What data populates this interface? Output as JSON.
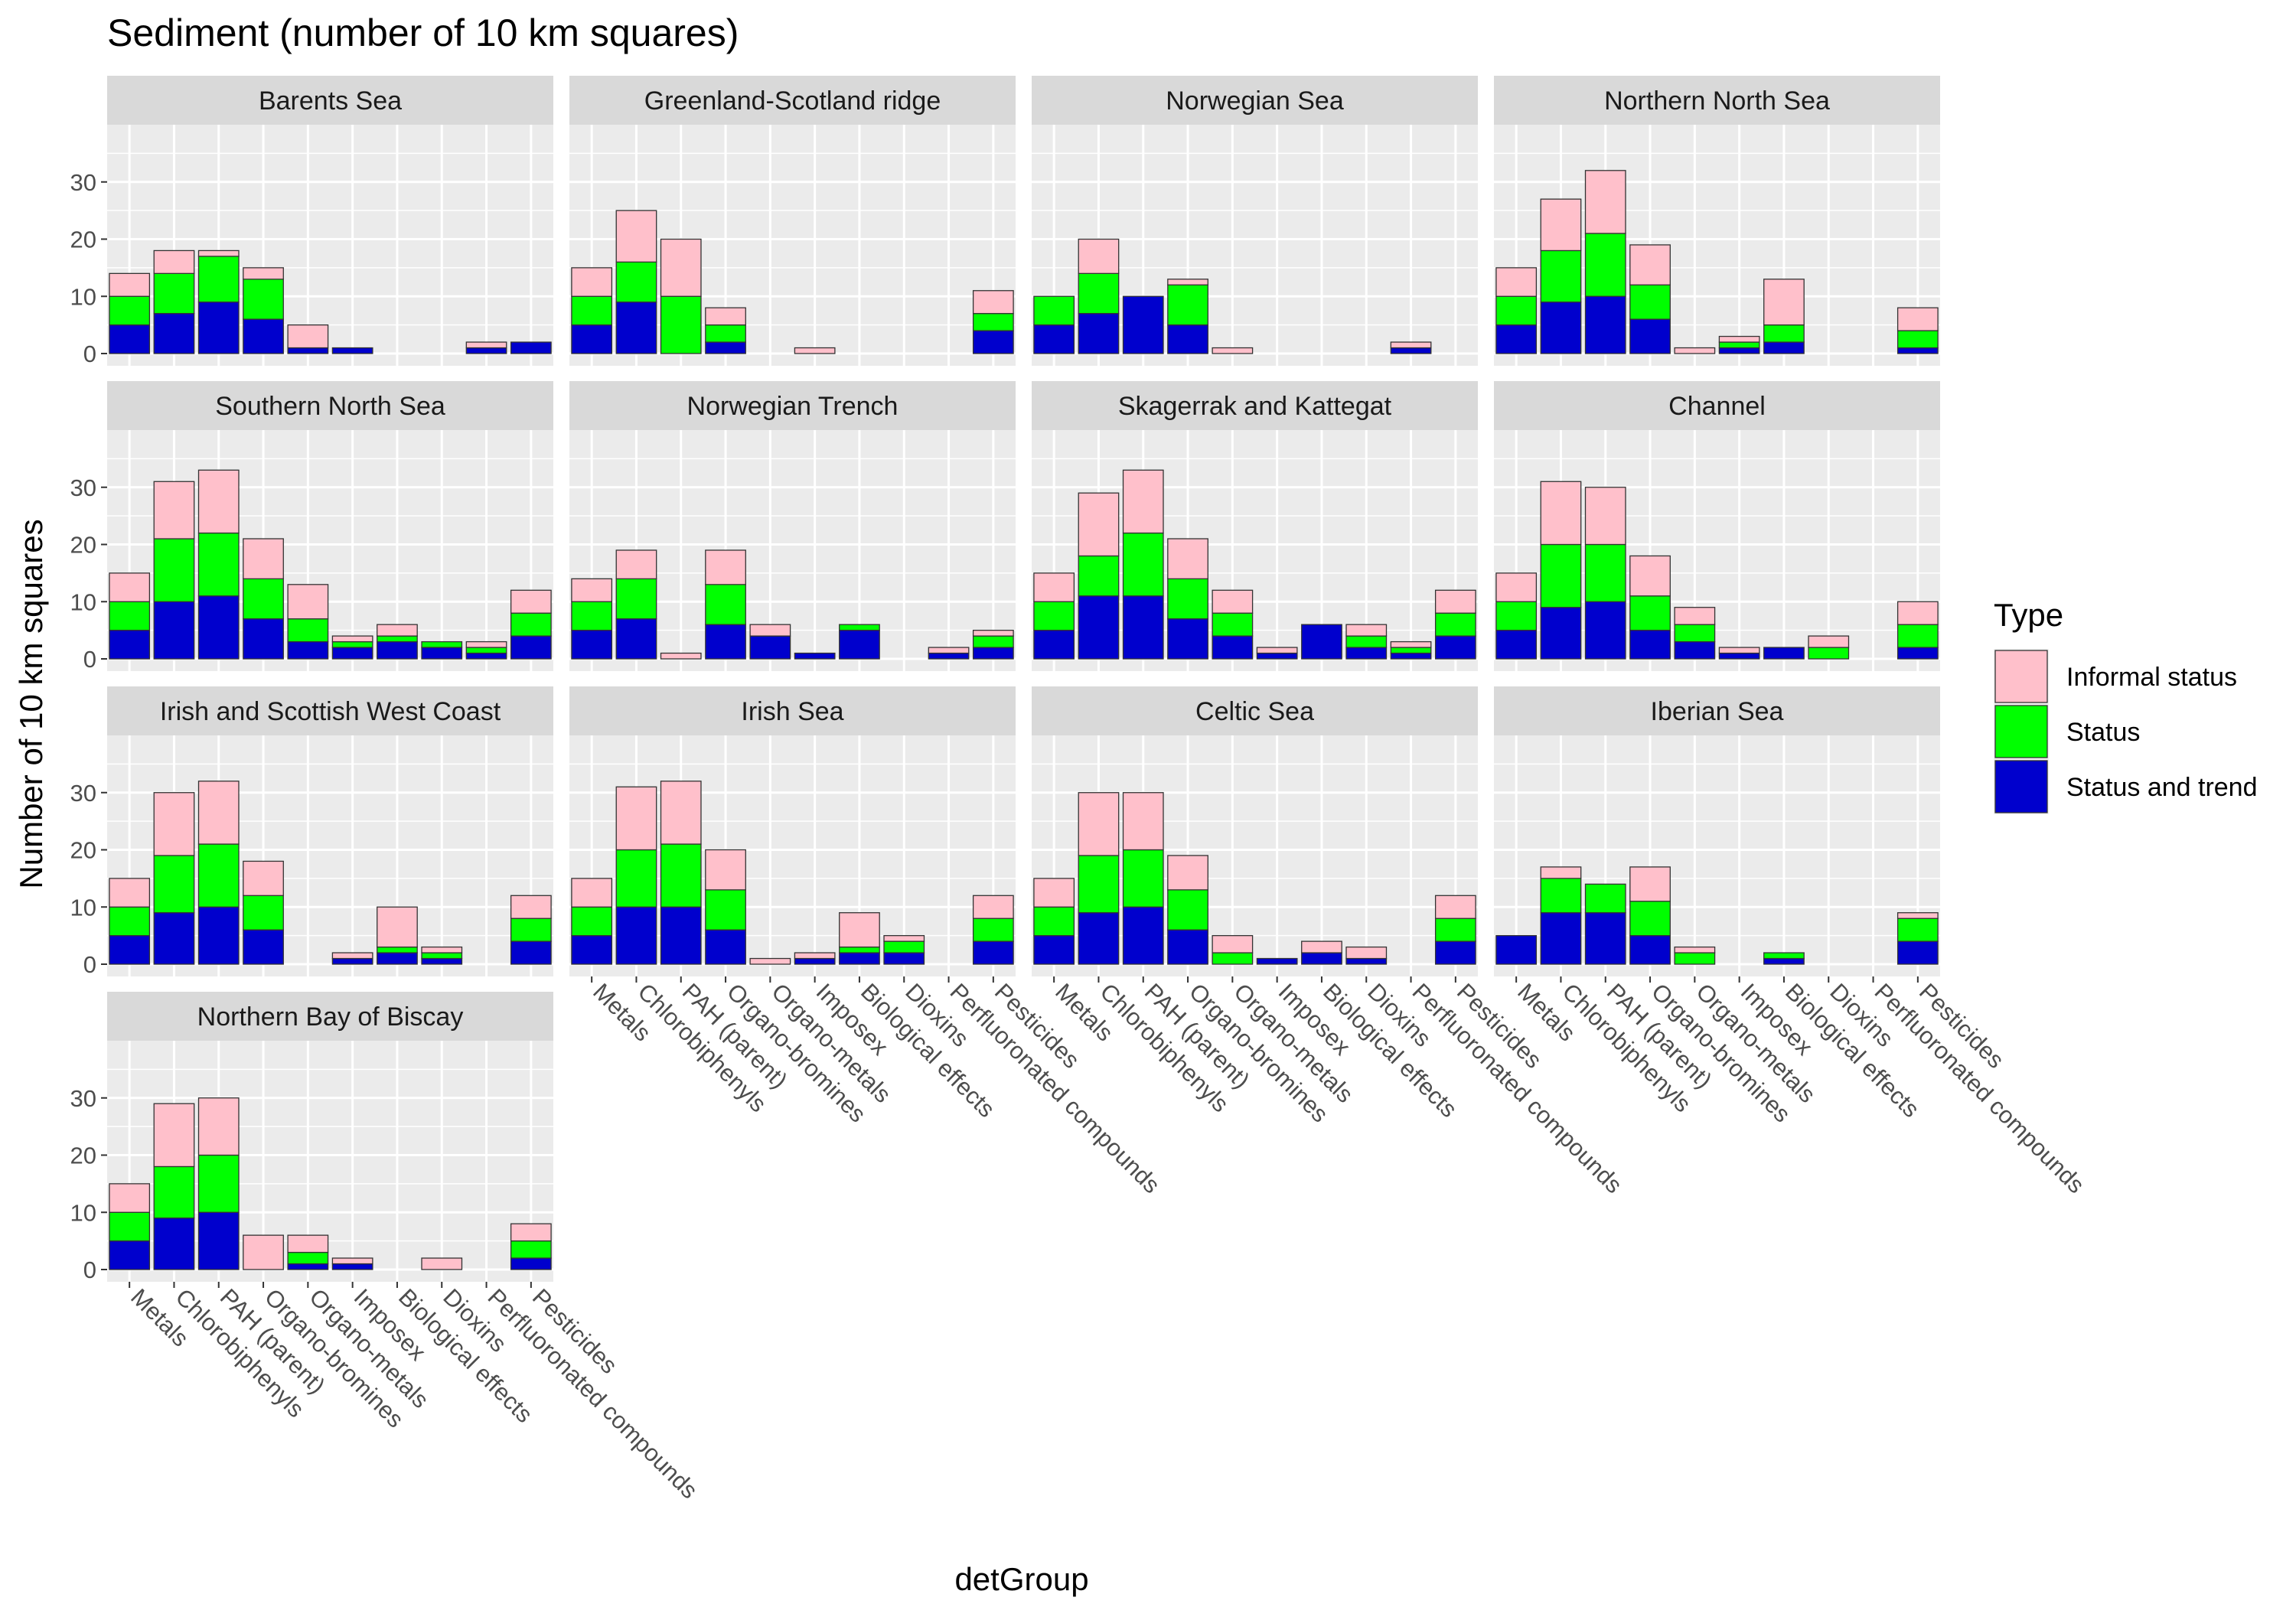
{
  "chart_data": {
    "type": "bar",
    "stacked": true,
    "title": "Sediment (number of 10 km squares)",
    "xlabel": "detGroup",
    "ylabel": "Number of 10 km squares",
    "ylim": [
      0,
      40
    ],
    "yticks": [
      0,
      10,
      20,
      30
    ],
    "grid": true,
    "legend": {
      "title": "Type",
      "position": "right"
    },
    "colors": {
      "Informal status": "#ffc0cb",
      "Status": "#00ff00",
      "Status and trend": "#0000cd",
      "panel_background": "#ebebeb",
      "strip_background": "#d9d9d9",
      "gridline": "#ffffff"
    },
    "categories": [
      "Metals",
      "Chlorobiphenyls",
      "PAH (parent)",
      "Organo-bromines",
      "Organo-metals",
      "Imposex",
      "Biological effects",
      "Dioxins",
      "Perfluoronated compounds",
      "Pesticides"
    ],
    "series_names": [
      "Status and trend",
      "Status",
      "Informal status"
    ],
    "panels": [
      {
        "name": "Barents Sea",
        "status_and_trend": [
          5,
          7,
          9,
          6,
          1,
          1,
          0,
          0,
          1,
          2
        ],
        "status": [
          5,
          7,
          8,
          7,
          0,
          0,
          0,
          0,
          0,
          0
        ],
        "informal_status": [
          4,
          4,
          1,
          2,
          4,
          0,
          0,
          0,
          1,
          0
        ]
      },
      {
        "name": "Greenland-Scotland ridge",
        "status_and_trend": [
          5,
          9,
          0,
          2,
          0,
          0,
          0,
          0,
          0,
          4
        ],
        "status": [
          5,
          7,
          10,
          3,
          0,
          0,
          0,
          0,
          0,
          3
        ],
        "informal_status": [
          5,
          9,
          10,
          3,
          0,
          1,
          0,
          0,
          0,
          4
        ]
      },
      {
        "name": "Norwegian Sea",
        "status_and_trend": [
          5,
          7,
          10,
          5,
          0,
          0,
          0,
          0,
          1,
          0
        ],
        "status": [
          5,
          7,
          0,
          7,
          0,
          0,
          0,
          0,
          0,
          0
        ],
        "informal_status": [
          0,
          6,
          0,
          1,
          1,
          0,
          0,
          0,
          1,
          0
        ]
      },
      {
        "name": "Northern North Sea",
        "status_and_trend": [
          5,
          9,
          10,
          6,
          0,
          1,
          2,
          0,
          0,
          1
        ],
        "status": [
          5,
          9,
          11,
          6,
          0,
          1,
          3,
          0,
          0,
          3
        ],
        "informal_status": [
          5,
          9,
          11,
          7,
          1,
          1,
          8,
          0,
          0,
          4
        ]
      },
      {
        "name": "Southern North Sea",
        "status_and_trend": [
          5,
          10,
          11,
          7,
          3,
          2,
          3,
          2,
          1,
          4
        ],
        "status": [
          5,
          11,
          11,
          7,
          4,
          1,
          1,
          1,
          1,
          4
        ],
        "informal_status": [
          5,
          10,
          11,
          7,
          6,
          1,
          2,
          0,
          1,
          4
        ]
      },
      {
        "name": "Norwegian Trench",
        "status_and_trend": [
          5,
          7,
          0,
          6,
          4,
          1,
          5,
          0,
          1,
          2
        ],
        "status": [
          5,
          7,
          0,
          7,
          0,
          0,
          1,
          0,
          0,
          2
        ],
        "informal_status": [
          4,
          5,
          1,
          6,
          2,
          0,
          0,
          0,
          1,
          1
        ]
      },
      {
        "name": "Skagerrak and Kattegat",
        "status_and_trend": [
          5,
          11,
          11,
          7,
          4,
          1,
          6,
          2,
          1,
          4
        ],
        "status": [
          5,
          7,
          11,
          7,
          4,
          0,
          0,
          2,
          1,
          4
        ],
        "informal_status": [
          5,
          11,
          11,
          7,
          4,
          1,
          0,
          2,
          1,
          4
        ]
      },
      {
        "name": "Channel",
        "status_and_trend": [
          5,
          9,
          10,
          5,
          3,
          1,
          2,
          0,
          0,
          2
        ],
        "status": [
          5,
          11,
          10,
          6,
          3,
          0,
          0,
          2,
          0,
          4
        ],
        "informal_status": [
          5,
          11,
          10,
          7,
          3,
          1,
          0,
          2,
          0,
          4
        ]
      },
      {
        "name": "Irish and Scottish West Coast",
        "status_and_trend": [
          5,
          9,
          10,
          6,
          0,
          1,
          2,
          1,
          0,
          4
        ],
        "status": [
          5,
          10,
          11,
          6,
          0,
          0,
          1,
          1,
          0,
          4
        ],
        "informal_status": [
          5,
          11,
          11,
          6,
          0,
          1,
          7,
          1,
          0,
          4
        ]
      },
      {
        "name": "Irish Sea",
        "status_and_trend": [
          5,
          10,
          10,
          6,
          0,
          1,
          2,
          2,
          0,
          4
        ],
        "status": [
          5,
          10,
          11,
          7,
          0,
          0,
          1,
          2,
          0,
          4
        ],
        "informal_status": [
          5,
          11,
          11,
          7,
          1,
          1,
          6,
          1,
          0,
          4
        ]
      },
      {
        "name": "Celtic Sea",
        "status_and_trend": [
          5,
          9,
          10,
          6,
          0,
          1,
          2,
          1,
          0,
          4
        ],
        "status": [
          5,
          10,
          10,
          7,
          2,
          0,
          0,
          0,
          0,
          4
        ],
        "informal_status": [
          5,
          11,
          10,
          6,
          3,
          0,
          2,
          2,
          0,
          4
        ]
      },
      {
        "name": "Iberian Sea",
        "status_and_trend": [
          5,
          9,
          9,
          5,
          0,
          0,
          1,
          0,
          0,
          4
        ],
        "status": [
          0,
          6,
          5,
          6,
          2,
          0,
          1,
          0,
          0,
          4
        ],
        "informal_status": [
          0,
          2,
          0,
          6,
          1,
          0,
          0,
          0,
          0,
          1
        ]
      },
      {
        "name": "Northern Bay of Biscay",
        "status_and_trend": [
          5,
          9,
          10,
          0,
          1,
          1,
          0,
          0,
          0,
          2
        ],
        "status": [
          5,
          9,
          10,
          0,
          2,
          0,
          0,
          0,
          0,
          3
        ],
        "informal_status": [
          5,
          11,
          10,
          6,
          3,
          1,
          0,
          2,
          0,
          3
        ]
      }
    ]
  }
}
